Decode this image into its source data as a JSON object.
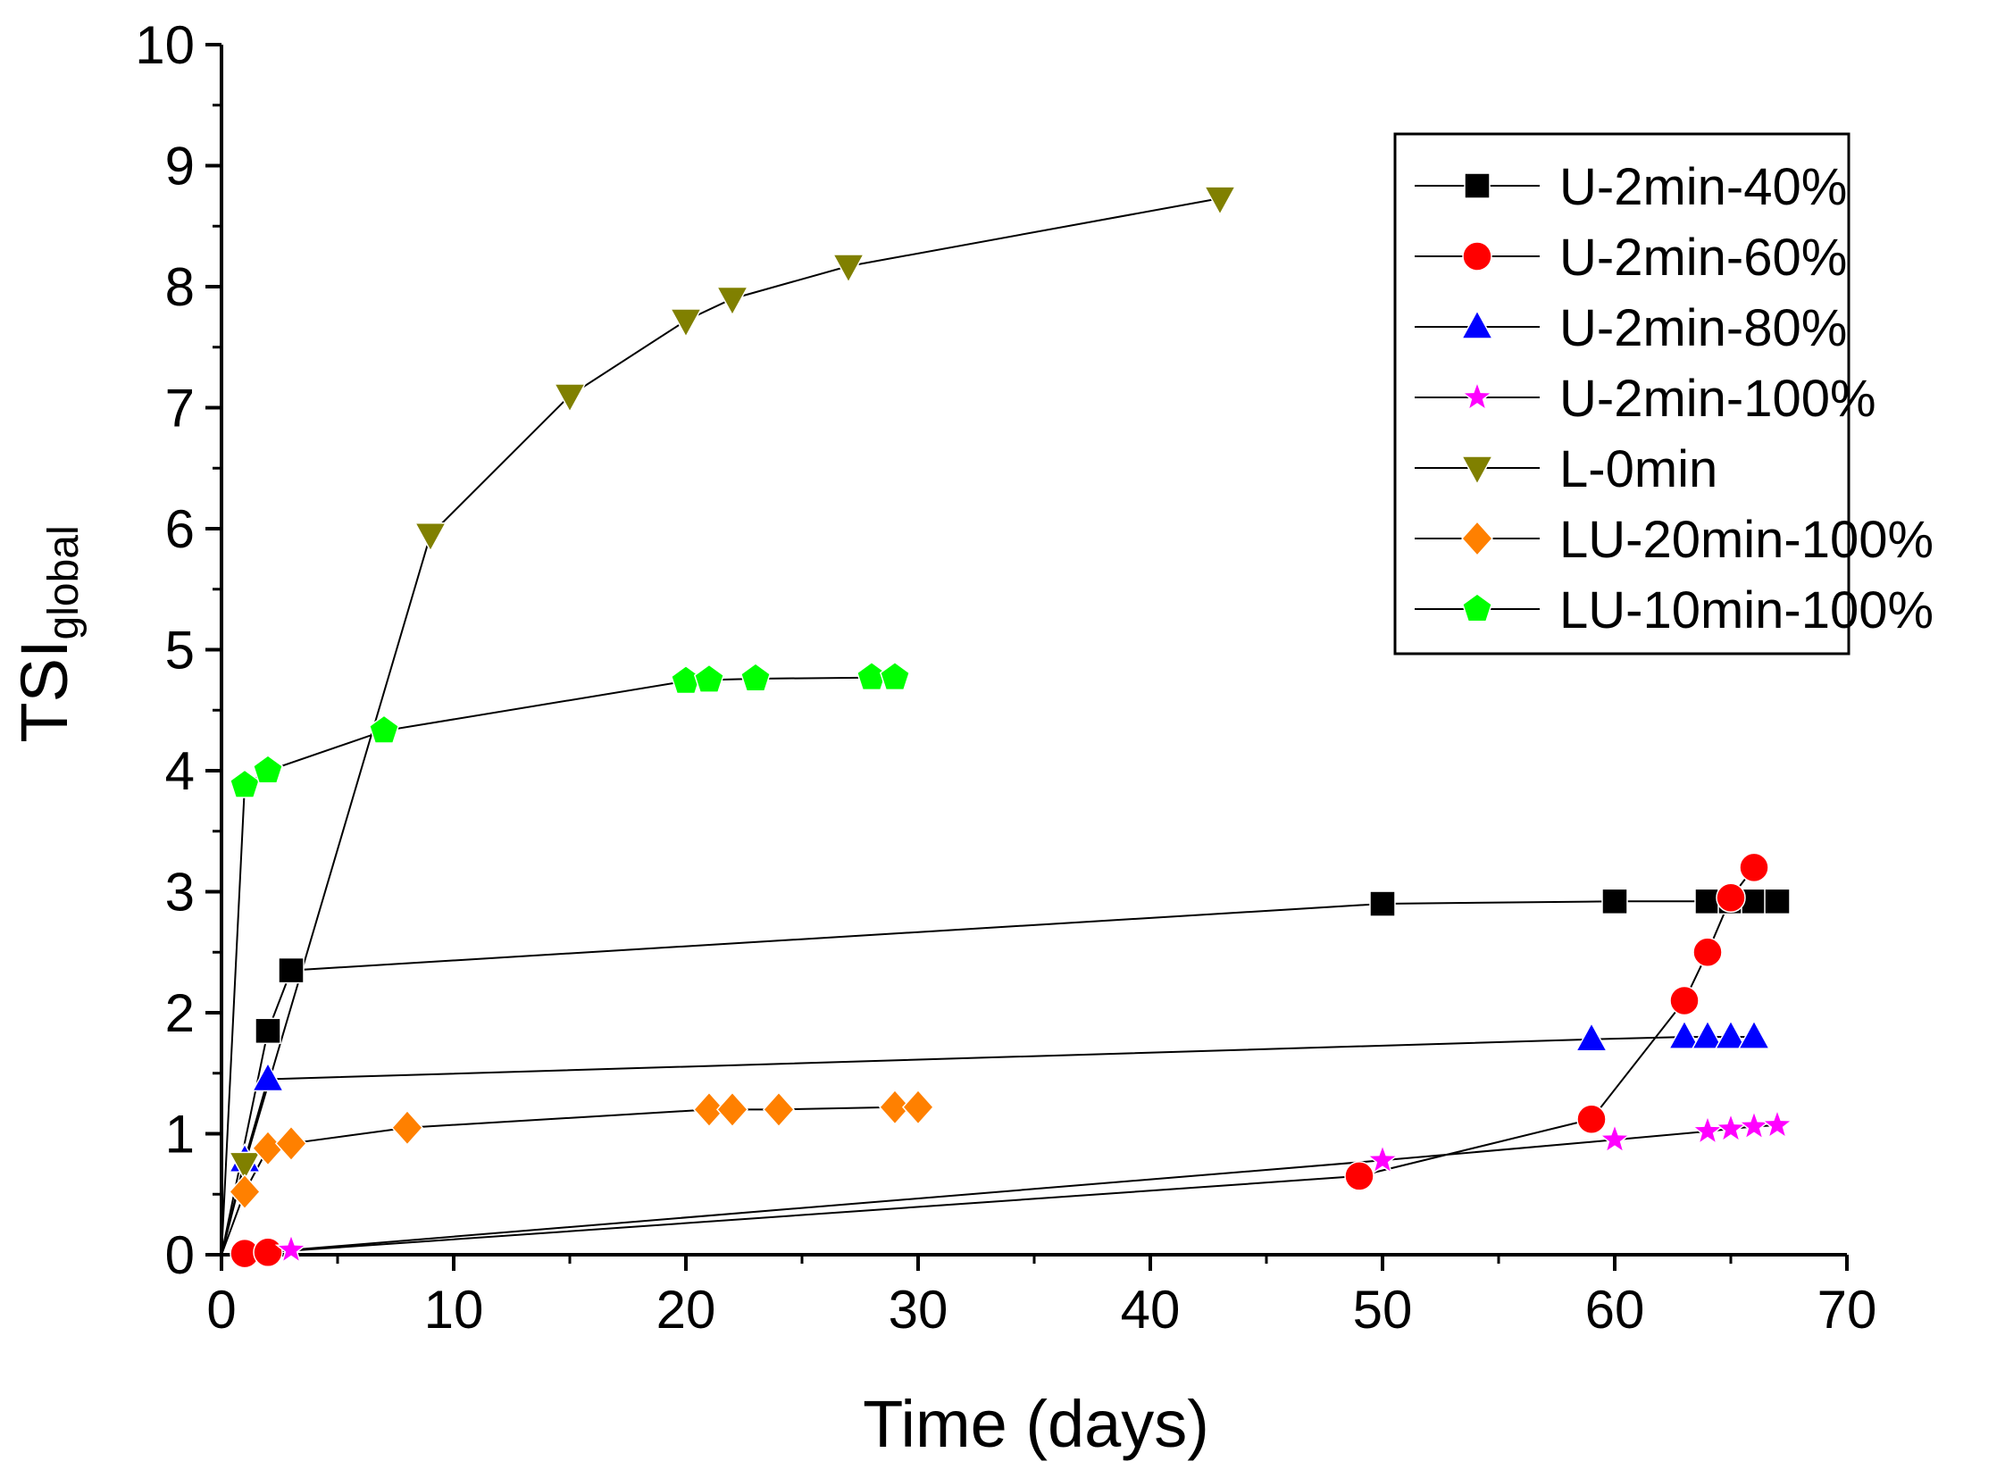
{
  "chart_data": {
    "type": "scatter",
    "xlabel": "Time (days)",
    "ylabel_main": "TSI",
    "ylabel_sub": "global",
    "xlim": [
      0,
      70
    ],
    "ylim": [
      0,
      10
    ],
    "xticks": [
      0,
      10,
      20,
      30,
      40,
      50,
      60,
      70
    ],
    "yticks": [
      0,
      1,
      2,
      3,
      4,
      5,
      6,
      7,
      8,
      9,
      10
    ],
    "legend_position": "top-right",
    "series": [
      {
        "name": "U-2min-40%",
        "marker": "square",
        "color": "#000000",
        "x": [
          0,
          2,
          3,
          50,
          60,
          64,
          65,
          66,
          67
        ],
        "y": [
          0,
          1.85,
          2.35,
          2.9,
          2.92,
          2.92,
          2.92,
          2.92,
          2.92
        ]
      },
      {
        "name": "U-2min-60%",
        "marker": "circle",
        "color": "#ff0000",
        "x": [
          0,
          1,
          2,
          49,
          59,
          63,
          64,
          65,
          66
        ],
        "y": [
          0,
          0.01,
          0.02,
          0.65,
          1.12,
          2.1,
          2.5,
          2.95,
          3.2
        ]
      },
      {
        "name": "U-2min-80%",
        "marker": "triangle-up",
        "color": "#0000ff",
        "x": [
          0,
          1,
          2,
          59,
          63,
          64,
          65,
          66
        ],
        "y": [
          0,
          0.78,
          1.45,
          1.78,
          1.8,
          1.8,
          1.8,
          1.8
        ]
      },
      {
        "name": "U-2min-100%",
        "marker": "star",
        "color": "#ff00ff",
        "x": [
          0,
          3,
          50,
          60,
          64,
          65,
          66,
          67
        ],
        "y": [
          0,
          0.04,
          0.78,
          0.95,
          1.02,
          1.04,
          1.06,
          1.07
        ]
      },
      {
        "name": "L-0min",
        "marker": "triangle-down",
        "color": "#808000",
        "x": [
          0,
          1,
          9,
          15,
          20,
          22,
          27,
          43
        ],
        "y": [
          0,
          0.75,
          5.95,
          7.1,
          7.72,
          7.9,
          8.17,
          8.73
        ]
      },
      {
        "name": "LU-20min-100%",
        "marker": "diamond",
        "color": "#ff8000",
        "x": [
          0,
          1,
          2,
          3,
          8,
          21,
          22,
          24,
          29,
          30
        ],
        "y": [
          0,
          0.52,
          0.88,
          0.92,
          1.05,
          1.2,
          1.2,
          1.2,
          1.22,
          1.22
        ]
      },
      {
        "name": "LU-10min-100%",
        "marker": "pentagon",
        "color": "#00ff00",
        "x": [
          0,
          1,
          2,
          7,
          20,
          21,
          23,
          28,
          29
        ],
        "y": [
          0,
          3.88,
          4.0,
          4.33,
          4.74,
          4.75,
          4.76,
          4.77,
          4.77
        ]
      }
    ]
  }
}
